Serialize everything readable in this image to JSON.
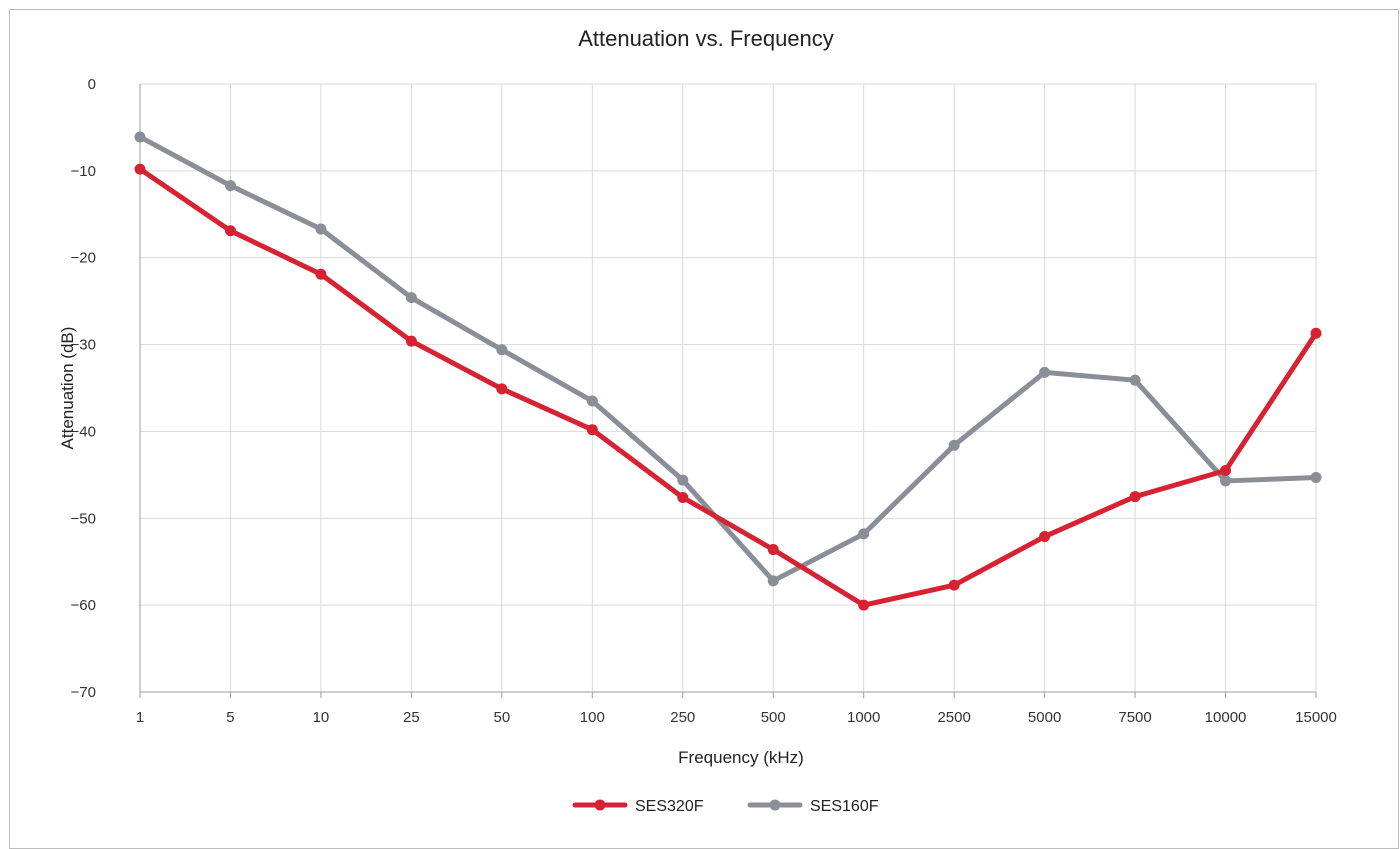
{
  "chart_data": {
    "type": "line",
    "title": "Attenuation vs. Frequency",
    "xlabel": "Frequency (kHz)",
    "ylabel": "Attenuation (dB)",
    "categories": [
      "1",
      "5",
      "10",
      "25",
      "50",
      "100",
      "250",
      "500",
      "1000",
      "2500",
      "5000",
      "7500",
      "10000",
      "15000"
    ],
    "ylim": [
      -70,
      0
    ],
    "yticks": [
      0,
      -10,
      -20,
      -30,
      -40,
      -50,
      -60,
      -70
    ],
    "ytick_labels": [
      "0",
      "−10",
      "−20",
      "−30",
      "−40",
      "−50",
      "−60",
      "−70"
    ],
    "grid": true,
    "legend_position": "bottom",
    "series": [
      {
        "name": "SES320F",
        "color": "#d62232",
        "values": [
          -9.8,
          -16.9,
          -21.9,
          -29.6,
          -35.1,
          -39.8,
          -47.6,
          -53.6,
          -60.0,
          -57.7,
          -52.1,
          -47.5,
          -44.5,
          -28.7
        ]
      },
      {
        "name": "SES160F",
        "color": "#8a8e96",
        "values": [
          -6.1,
          -11.7,
          -16.7,
          -24.6,
          -30.6,
          -36.5,
          -45.6,
          -57.2,
          -51.8,
          -41.6,
          -33.2,
          -34.1,
          -45.7,
          -45.3
        ]
      }
    ]
  }
}
